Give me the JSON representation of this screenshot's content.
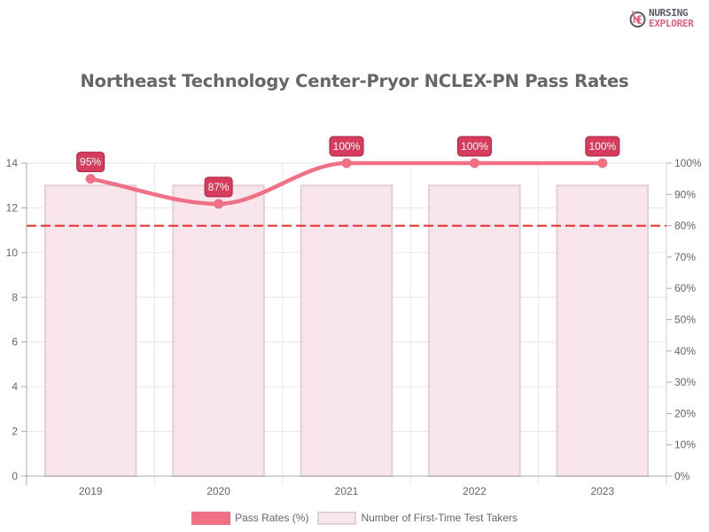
{
  "logo": {
    "line1": "NURSING",
    "line2": "EXPLORER",
    "icon": "nursing-explorer-logo-icon",
    "colors": {
      "dark": "#5a5a64",
      "accent": "#e0607a"
    }
  },
  "title": "Northeast Technology Center-Pryor NCLEX-PN Pass Rates",
  "legend": {
    "items": [
      {
        "label": "Pass Rates (%)",
        "color": "#f07085"
      },
      {
        "label": "Number of First-Time Test Takers",
        "color": "#f8e6ec",
        "border": "#e3d0d6"
      }
    ]
  },
  "axes": {
    "left_ticks": [
      "0",
      "2",
      "4",
      "6",
      "8",
      "10",
      "12",
      "14"
    ],
    "right_ticks": [
      "0%",
      "10%",
      "20%",
      "30%",
      "40%",
      "50%",
      "60%",
      "70%",
      "80%",
      "90%",
      "100%"
    ],
    "x_ticks": [
      "2019",
      "2020",
      "2021",
      "2022",
      "2023"
    ]
  },
  "colors": {
    "line": "#f07085",
    "label_bg": "#d63c5c",
    "label_border": "#a8203c",
    "bar_fill": "#f8e6ec",
    "bar_border": "#e3d0d6",
    "threshold": "#e8262e",
    "grid": "#e6e6e6",
    "axis": "#a8a8a8",
    "tick_text": "#666666"
  },
  "chart_data": {
    "type": "bar+line",
    "title": "Northeast Technology Center-Pryor NCLEX-PN Pass Rates",
    "categories": [
      "2019",
      "2020",
      "2021",
      "2022",
      "2023"
    ],
    "series": [
      {
        "name": "Pass Rates (%)",
        "type": "line",
        "axis": "right",
        "values": [
          95,
          87,
          100,
          100,
          100
        ],
        "labels": [
          "95%",
          "87%",
          "100%",
          "100%",
          "100%"
        ]
      },
      {
        "name": "Number of First-Time Test Takers",
        "type": "bar",
        "axis": "left",
        "values": [
          13,
          13,
          13,
          13,
          13
        ]
      }
    ],
    "annotations": [
      {
        "type": "horizontal-dashed-line",
        "axis": "right",
        "value": 80,
        "color": "#e8262e"
      }
    ],
    "left_ylim": [
      0,
      14
    ],
    "right_ylim": [
      0,
      100
    ],
    "xlabel": "",
    "ylabel": "",
    "grid": true,
    "legend_position": "bottom"
  }
}
